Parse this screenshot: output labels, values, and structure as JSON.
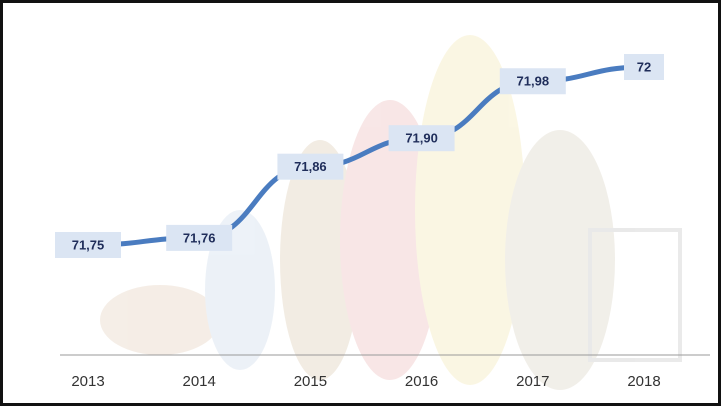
{
  "chart_data": {
    "type": "line",
    "categories": [
      "2013",
      "2014",
      "2015",
      "2016",
      "2017",
      "2018"
    ],
    "values": [
      71.75,
      71.76,
      71.86,
      71.9,
      71.98,
      72
    ],
    "value_labels": [
      "71,75",
      "71,76",
      "71,86",
      "71,90",
      "71,98",
      "72"
    ],
    "color": "#4a7cc0"
  }
}
